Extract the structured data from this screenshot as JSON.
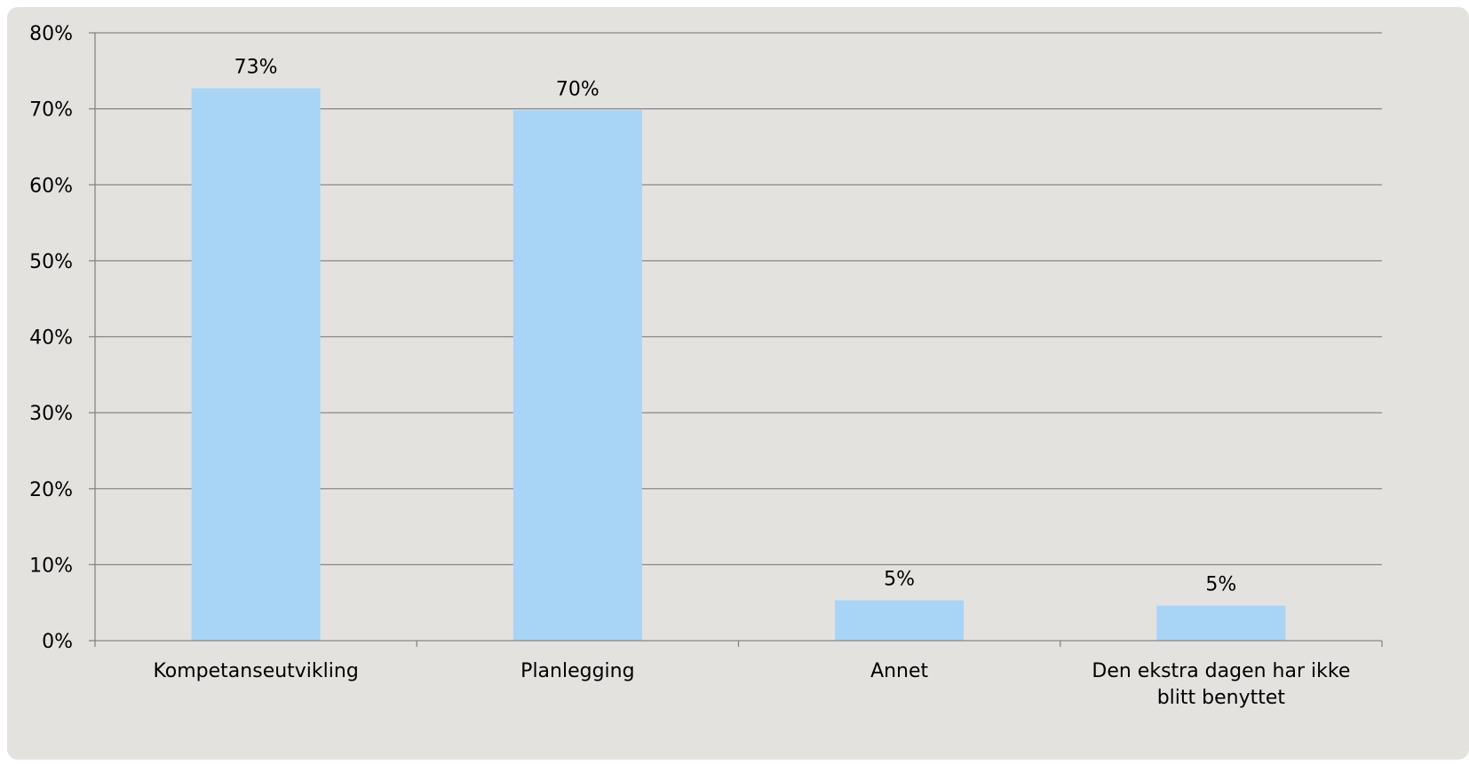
{
  "chart_data": {
    "type": "bar",
    "categories": [
      [
        "Kompetanseutvikling"
      ],
      [
        "Planlegging"
      ],
      [
        "Annet"
      ],
      [
        "Den ekstra dagen har ikke",
        "blitt benyttet"
      ]
    ],
    "values": [
      72.7,
      69.8,
      5.3,
      4.6
    ],
    "data_labels": [
      "73%",
      "70%",
      "5%",
      "5%"
    ],
    "y_ticks": [
      0,
      10,
      20,
      30,
      40,
      50,
      60,
      70,
      80
    ],
    "y_tick_labels": [
      "0%",
      "10%",
      "20%",
      "30%",
      "40%",
      "50%",
      "60%",
      "70%",
      "80%"
    ],
    "ylim": [
      0,
      80
    ],
    "grid": true,
    "colors": {
      "bar": "#a8d4f5",
      "background": "#e4e2df",
      "gridline": "#868686"
    }
  }
}
